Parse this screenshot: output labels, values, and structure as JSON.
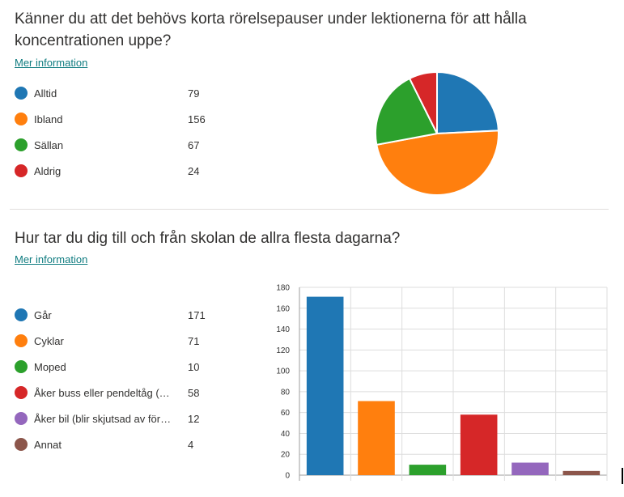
{
  "questions": [
    {
      "title": "Känner du att det behövs korta rörelsepauser under lektionerna för att hålla koncentrationen uppe?",
      "more_info": "Mer information",
      "items": [
        {
          "label": "Alltid",
          "count": "79"
        },
        {
          "label": "Ibland",
          "count": "156"
        },
        {
          "label": "Sällan",
          "count": "67"
        },
        {
          "label": "Aldrig",
          "count": "24"
        }
      ]
    },
    {
      "title": "Hur tar du dig till och från skolan de allra flesta dagarna?",
      "more_info": "Mer information",
      "items": [
        {
          "label": "Går",
          "count": "171"
        },
        {
          "label": "Cyklar",
          "count": "71"
        },
        {
          "label": "Moped",
          "count": "10"
        },
        {
          "label": "Åker buss eller pendeltåg (koll...",
          "count": "58"
        },
        {
          "label": "Åker bil (blir skjutsad av föräld...",
          "count": "12"
        },
        {
          "label": "Annat",
          "count": "4"
        }
      ]
    }
  ],
  "colors": [
    "#1f77b4",
    "#ff7f0e",
    "#2ca02c",
    "#d62728",
    "#9467bd",
    "#8c564b"
  ],
  "chart_data": [
    {
      "type": "pie",
      "labels": [
        "Alltid",
        "Ibland",
        "Sällan",
        "Aldrig"
      ],
      "values": [
        79,
        156,
        67,
        24
      ],
      "legend": "left"
    },
    {
      "type": "bar",
      "categories": [
        "Går",
        "Cyklar",
        "Moped",
        "Åker buss eller pendeltåg (koll...",
        "Åker bil (blir skjutsad av föräld...",
        "Annat"
      ],
      "values": [
        171,
        71,
        10,
        58,
        12,
        4
      ],
      "ylim": [
        0,
        180
      ],
      "yticks": [
        0,
        20,
        40,
        60,
        80,
        100,
        120,
        140,
        160,
        180
      ],
      "grid": true,
      "legend": "left"
    }
  ]
}
